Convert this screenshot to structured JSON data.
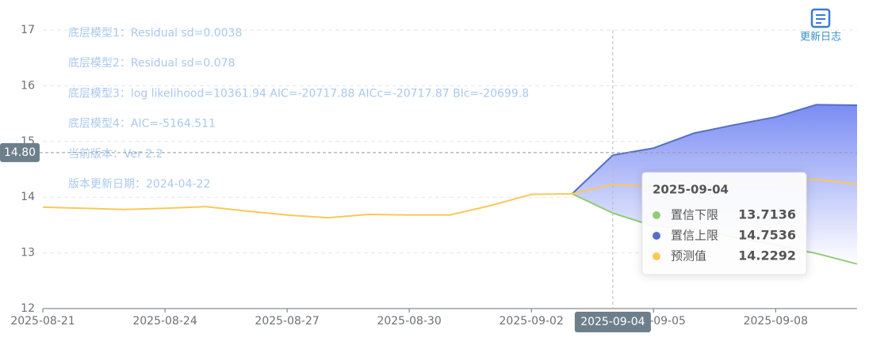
{
  "chart_data": {
    "type": "line",
    "categories": [
      "2025-08-21",
      null,
      null,
      "2025-08-24",
      null,
      null,
      "2025-08-27",
      null,
      null,
      "2025-08-30",
      null,
      null,
      "2025-09-02",
      null,
      "2025-09-04",
      "2025-09-05",
      null,
      null,
      "2025-09-08",
      null,
      null
    ],
    "series": [
      {
        "name": "置信下限",
        "color": "#91cc75",
        "values": [
          null,
          null,
          null,
          null,
          null,
          null,
          null,
          null,
          null,
          null,
          null,
          null,
          null,
          14.06,
          13.7136,
          13.48,
          13.42,
          13.28,
          13.14,
          12.99,
          12.8
        ]
      },
      {
        "name": "置信上限",
        "color": "#5470c6",
        "values": [
          null,
          null,
          null,
          null,
          null,
          null,
          null,
          null,
          null,
          null,
          null,
          null,
          null,
          14.06,
          14.7536,
          14.88,
          15.15,
          15.3,
          15.44,
          15.66,
          15.65
        ]
      },
      {
        "name": "预测值",
        "color": "#fac858",
        "values": [
          13.82,
          13.8,
          13.78,
          13.8,
          13.83,
          13.75,
          13.68,
          13.63,
          13.69,
          13.68,
          13.68,
          13.85,
          14.05,
          14.06,
          14.2292,
          14.19,
          14.27,
          14.26,
          14.26,
          14.32,
          14.23
        ]
      }
    ],
    "band_fill": true,
    "ylim": [
      12,
      17
    ],
    "yticks": [
      12,
      13,
      14,
      15,
      16,
      17
    ],
    "grid": true,
    "axis_pointer": {
      "x": "2025-09-04",
      "y": {
        "value": 14.8,
        "label": "14.80"
      }
    },
    "annotations": [
      "底层模型1：Residual sd=0.0038",
      "底层模型2：Residual sd=0.078",
      "底层模型3：log likelihood=10361.94 AIC=-20717.88 AICc=-20717.87 BIc=-20699.8",
      "底层模型4：AIC=-5164.511",
      "当前版本：Ver 2.2",
      "版本更新日期：2024-04-22"
    ]
  },
  "toolbar": {
    "label": "更新日志"
  }
}
